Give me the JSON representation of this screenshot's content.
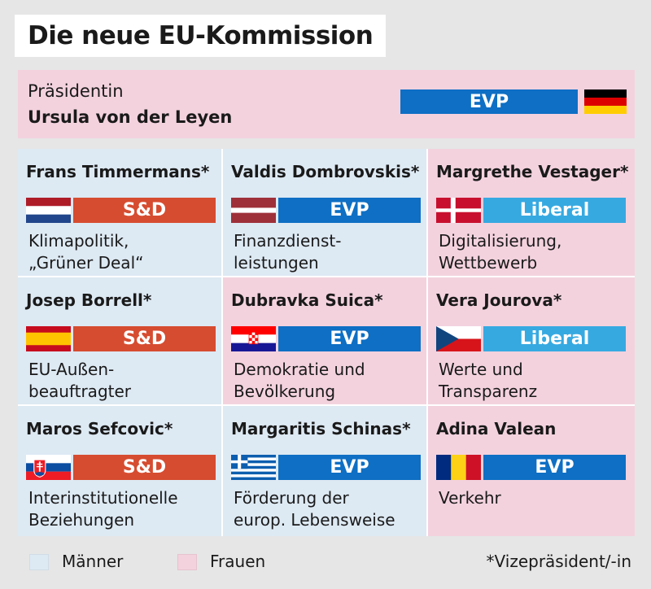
{
  "title": "Die neue EU-Kommission",
  "president": {
    "role": "Präsidentin",
    "name": "Ursula von der Leyen",
    "party": "EVP",
    "flag": "germany-flag"
  },
  "commissioners": [
    {
      "name": "Frans Timmermans*",
      "party": "S&D",
      "flag": "netherlands-flag",
      "portfolio": [
        "Klimapolitik,",
        "„Grüner Deal“"
      ],
      "gender": "Männer"
    },
    {
      "name": "Valdis Dombrovskis*",
      "party": "EVP",
      "flag": "latvia-flag",
      "portfolio": [
        "Finanzdienst-",
        "leistungen"
      ],
      "gender": "Männer"
    },
    {
      "name": "Margrethe Vestager*",
      "party": "Liberal",
      "flag": "denmark-flag",
      "portfolio": [
        "Digitalisierung,",
        "Wettbewerb"
      ],
      "gender": "Frauen"
    },
    {
      "name": "Josep Borrell*",
      "party": "S&D",
      "flag": "spain-flag",
      "portfolio": [
        "EU-Außen-",
        "beauftragter"
      ],
      "gender": "Männer"
    },
    {
      "name": "Dubravka Suica*",
      "party": "EVP",
      "flag": "croatia-flag",
      "portfolio": [
        "Demokratie und",
        "Bevölkerung"
      ],
      "gender": "Frauen"
    },
    {
      "name": "Vera Jourova*",
      "party": "Liberal",
      "flag": "czechia-flag",
      "portfolio": [
        "Werte und",
        "Transparenz"
      ],
      "gender": "Frauen"
    },
    {
      "name": "Maros Sefcovic*",
      "party": "S&D",
      "flag": "slovakia-flag",
      "portfolio": [
        "Interinstitutionelle",
        "Beziehungen"
      ],
      "gender": "Männer"
    },
    {
      "name": "Margaritis Schinas*",
      "party": "EVP",
      "flag": "greece-flag",
      "portfolio": [
        "Förderung der",
        "europ. Lebensweise"
      ],
      "gender": "Männer"
    },
    {
      "name": "Adina Valean",
      "party": "EVP",
      "flag": "romania-flag",
      "portfolio": [
        "Verkehr",
        ""
      ],
      "gender": "Frauen"
    }
  ],
  "legend": {
    "men": "Männer",
    "women": "Frauen",
    "note": "*Vizepräsident/-in"
  },
  "colors": {
    "men_bg": "#dde9f3",
    "women_bg": "#f3d2de",
    "sd": "#d64c30",
    "evp": "#0e6fc4",
    "liberal": "#36a9e1"
  }
}
